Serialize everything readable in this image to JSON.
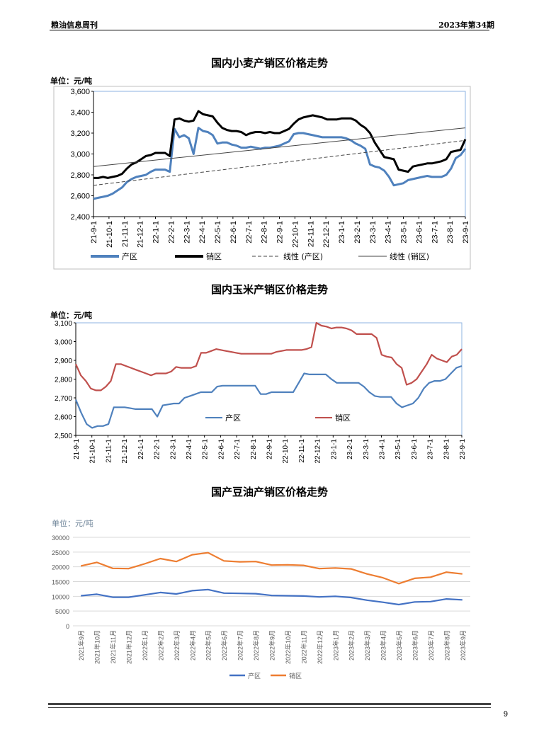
{
  "header": {
    "left": "粮油信息周刊",
    "right": "2023年第34期"
  },
  "page_number": "9",
  "chart_data": [
    {
      "type": "line",
      "title": "国内小麦产销区价格走势",
      "unit": "单位：元/吨",
      "ylim": [
        2400,
        3600
      ],
      "yticks": [
        "2,400",
        "2,600",
        "2,800",
        "3,000",
        "3,200",
        "3,400",
        "3,600"
      ],
      "ytick_values": [
        2400,
        2600,
        2800,
        3000,
        3200,
        3400,
        3600
      ],
      "x_labels": [
        "21-9-1",
        "21-10-1",
        "21-11-1",
        "21-12-1",
        "22-1-1",
        "22-2-1",
        "22-3-1",
        "22-4-1",
        "22-5-1",
        "22-6-1",
        "22-7-1",
        "22-8-1",
        "22-9-1",
        "22-10-1",
        "22-11-1",
        "22-12-1",
        "23-1-1",
        "23-2-1",
        "23-3-1",
        "23-4-1",
        "23-5-1",
        "23-6-1",
        "23-7-1",
        "23-8-1",
        "23-9-1"
      ],
      "grid": false,
      "legend_position": "bottom",
      "series": [
        {
          "name": "产区",
          "color": "#4f81bd",
          "style": "solid",
          "values": [
            2570,
            2580,
            2590,
            2600,
            2620,
            2650,
            2680,
            2730,
            2760,
            2780,
            2790,
            2800,
            2830,
            2850,
            2850,
            2850,
            2830,
            3240,
            3160,
            3180,
            3150,
            3000,
            3250,
            3220,
            3210,
            3180,
            3100,
            3110,
            3110,
            3090,
            3080,
            3060,
            3060,
            3070,
            3060,
            3050,
            3060,
            3060,
            3070,
            3080,
            3100,
            3120,
            3190,
            3200,
            3200,
            3190,
            3180,
            3170,
            3160,
            3160,
            3160,
            3160,
            3160,
            3150,
            3130,
            3100,
            3080,
            3050,
            2900,
            2880,
            2870,
            2840,
            2780,
            2700,
            2710,
            2720,
            2750,
            2760,
            2770,
            2780,
            2790,
            2780,
            2780,
            2780,
            2800,
            2860,
            2960,
            2990,
            3050
          ]
        },
        {
          "name": "销区",
          "color": "#000000",
          "style": "solid",
          "values": [
            2770,
            2770,
            2780,
            2770,
            2780,
            2790,
            2810,
            2860,
            2900,
            2920,
            2950,
            2980,
            2990,
            3010,
            3010,
            3010,
            2980,
            3330,
            3340,
            3320,
            3310,
            3320,
            3410,
            3380,
            3370,
            3360,
            3300,
            3250,
            3230,
            3220,
            3220,
            3210,
            3180,
            3200,
            3210,
            3210,
            3200,
            3210,
            3200,
            3200,
            3220,
            3240,
            3290,
            3330,
            3350,
            3360,
            3370,
            3360,
            3350,
            3330,
            3330,
            3330,
            3340,
            3340,
            3340,
            3320,
            3280,
            3250,
            3200,
            3110,
            3040,
            2970,
            2960,
            2950,
            2850,
            2840,
            2830,
            2880,
            2890,
            2900,
            2910,
            2910,
            2920,
            2930,
            2950,
            3020,
            3030,
            3040,
            3140
          ]
        },
        {
          "name": "线性 (产区)",
          "color": "#444444",
          "style": "dashed",
          "values": [
            2700,
            3130
          ]
        },
        {
          "name": "线性 (销区)",
          "color": "#444444",
          "style": "solid-thin",
          "values": [
            2880,
            3250
          ]
        }
      ]
    },
    {
      "type": "line",
      "title": "国内玉米产销区价格走势",
      "unit": "单位：元/吨",
      "ylim": [
        2500,
        3100
      ],
      "yticks": [
        "2,500",
        "2,600",
        "2,700",
        "2,800",
        "2,900",
        "3,000",
        "3,100"
      ],
      "ytick_values": [
        2500,
        2600,
        2700,
        2800,
        2900,
        3000,
        3100
      ],
      "x_labels": [
        "21-9-1",
        "21-10-1",
        "21-11-1",
        "21-12-1",
        "22-1-1",
        "22-2-1",
        "22-3-1",
        "22-4-1",
        "22-5-1",
        "22-6-1",
        "22-7-1",
        "22-8-1",
        "22-9-1",
        "22-10-1",
        "22-11-1",
        "22-12-1",
        "23-1-1",
        "23-2-1",
        "23-3-1",
        "23-4-1",
        "23-5-1",
        "23-6-1",
        "23-7-1",
        "23-8-1",
        "23-9-1"
      ],
      "grid": false,
      "legend_position": "bottom",
      "series": [
        {
          "name": "产区",
          "color": "#4f81bd",
          "values": [
            2690,
            2620,
            2560,
            2540,
            2550,
            2550,
            2560,
            2650,
            2650,
            2650,
            2645,
            2640,
            2640,
            2640,
            2640,
            2600,
            2660,
            2665,
            2670,
            2670,
            2700,
            2710,
            2720,
            2730,
            2730,
            2730,
            2760,
            2765,
            2765,
            2765,
            2765,
            2765,
            2765,
            2765,
            2720,
            2720,
            2730,
            2730,
            2730,
            2730,
            2730,
            2780,
            2830,
            2825,
            2825,
            2825,
            2825,
            2800,
            2780,
            2780,
            2780,
            2780,
            2780,
            2760,
            2730,
            2710,
            2705,
            2705,
            2705,
            2670,
            2650,
            2660,
            2670,
            2700,
            2750,
            2780,
            2790,
            2790,
            2800,
            2830,
            2860,
            2870
          ]
        },
        {
          "name": "销区",
          "color": "#c0504d",
          "values": [
            2880,
            2820,
            2790,
            2750,
            2740,
            2740,
            2760,
            2790,
            2880,
            2880,
            2870,
            2860,
            2850,
            2840,
            2830,
            2820,
            2830,
            2830,
            2830,
            2840,
            2865,
            2860,
            2860,
            2860,
            2870,
            2940,
            2940,
            2950,
            2960,
            2955,
            2950,
            2945,
            2940,
            2935,
            2935,
            2935,
            2935,
            2935,
            2935,
            2935,
            2945,
            2950,
            2955,
            2955,
            2955,
            2955,
            2960,
            2970,
            3100,
            3085,
            3080,
            3070,
            3075,
            3075,
            3070,
            3060,
            3040,
            3040,
            3040,
            3040,
            3020,
            2930,
            2920,
            2915,
            2880,
            2860,
            2770,
            2780,
            2800,
            2840,
            2880,
            2930,
            2910,
            2900,
            2890,
            2920,
            2930,
            2960
          ]
        }
      ]
    },
    {
      "type": "line",
      "title": "国产豆油产销区价格走势",
      "unit": "单位：元/吨",
      "ylim": [
        0,
        30000
      ],
      "yticks": [
        "0",
        "5000",
        "10000",
        "15000",
        "20000",
        "25000",
        "30000"
      ],
      "ytick_values": [
        0,
        5000,
        10000,
        15000,
        20000,
        25000,
        30000
      ],
      "x_labels": [
        "2021年9月",
        "2021年10月",
        "2021年11月",
        "2021年12月",
        "2022年1月",
        "2022年2月",
        "2022年3月",
        "2022年4月",
        "2022年5月",
        "2022年6月",
        "2022年7月",
        "2022年8月",
        "2022年9月",
        "2022年10月",
        "2022年11月",
        "2022年12月",
        "2023年1月",
        "2023年2月",
        "2023年3月",
        "2023年4月",
        "2023年5月",
        "2023年6月",
        "2023年7月",
        "2023年8月",
        "2023年9月"
      ],
      "grid": true,
      "legend_position": "bottom",
      "series": [
        {
          "name": "产区",
          "color": "#4472c4",
          "values": [
            10200,
            10700,
            9700,
            9700,
            10500,
            11300,
            10800,
            11900,
            12300,
            11100,
            11000,
            10900,
            10300,
            10200,
            10100,
            9800,
            10000,
            9600,
            8700,
            8000,
            7200,
            8100,
            8200,
            9100,
            8800
          ]
        },
        {
          "name": "销区",
          "color": "#ed7d31",
          "values": [
            20300,
            21500,
            19500,
            19400,
            21000,
            22800,
            21800,
            24100,
            24800,
            22000,
            21700,
            21800,
            20600,
            20700,
            20500,
            19400,
            19600,
            19300,
            17600,
            16300,
            14300,
            16100,
            16500,
            18200,
            17600
          ]
        }
      ]
    }
  ]
}
